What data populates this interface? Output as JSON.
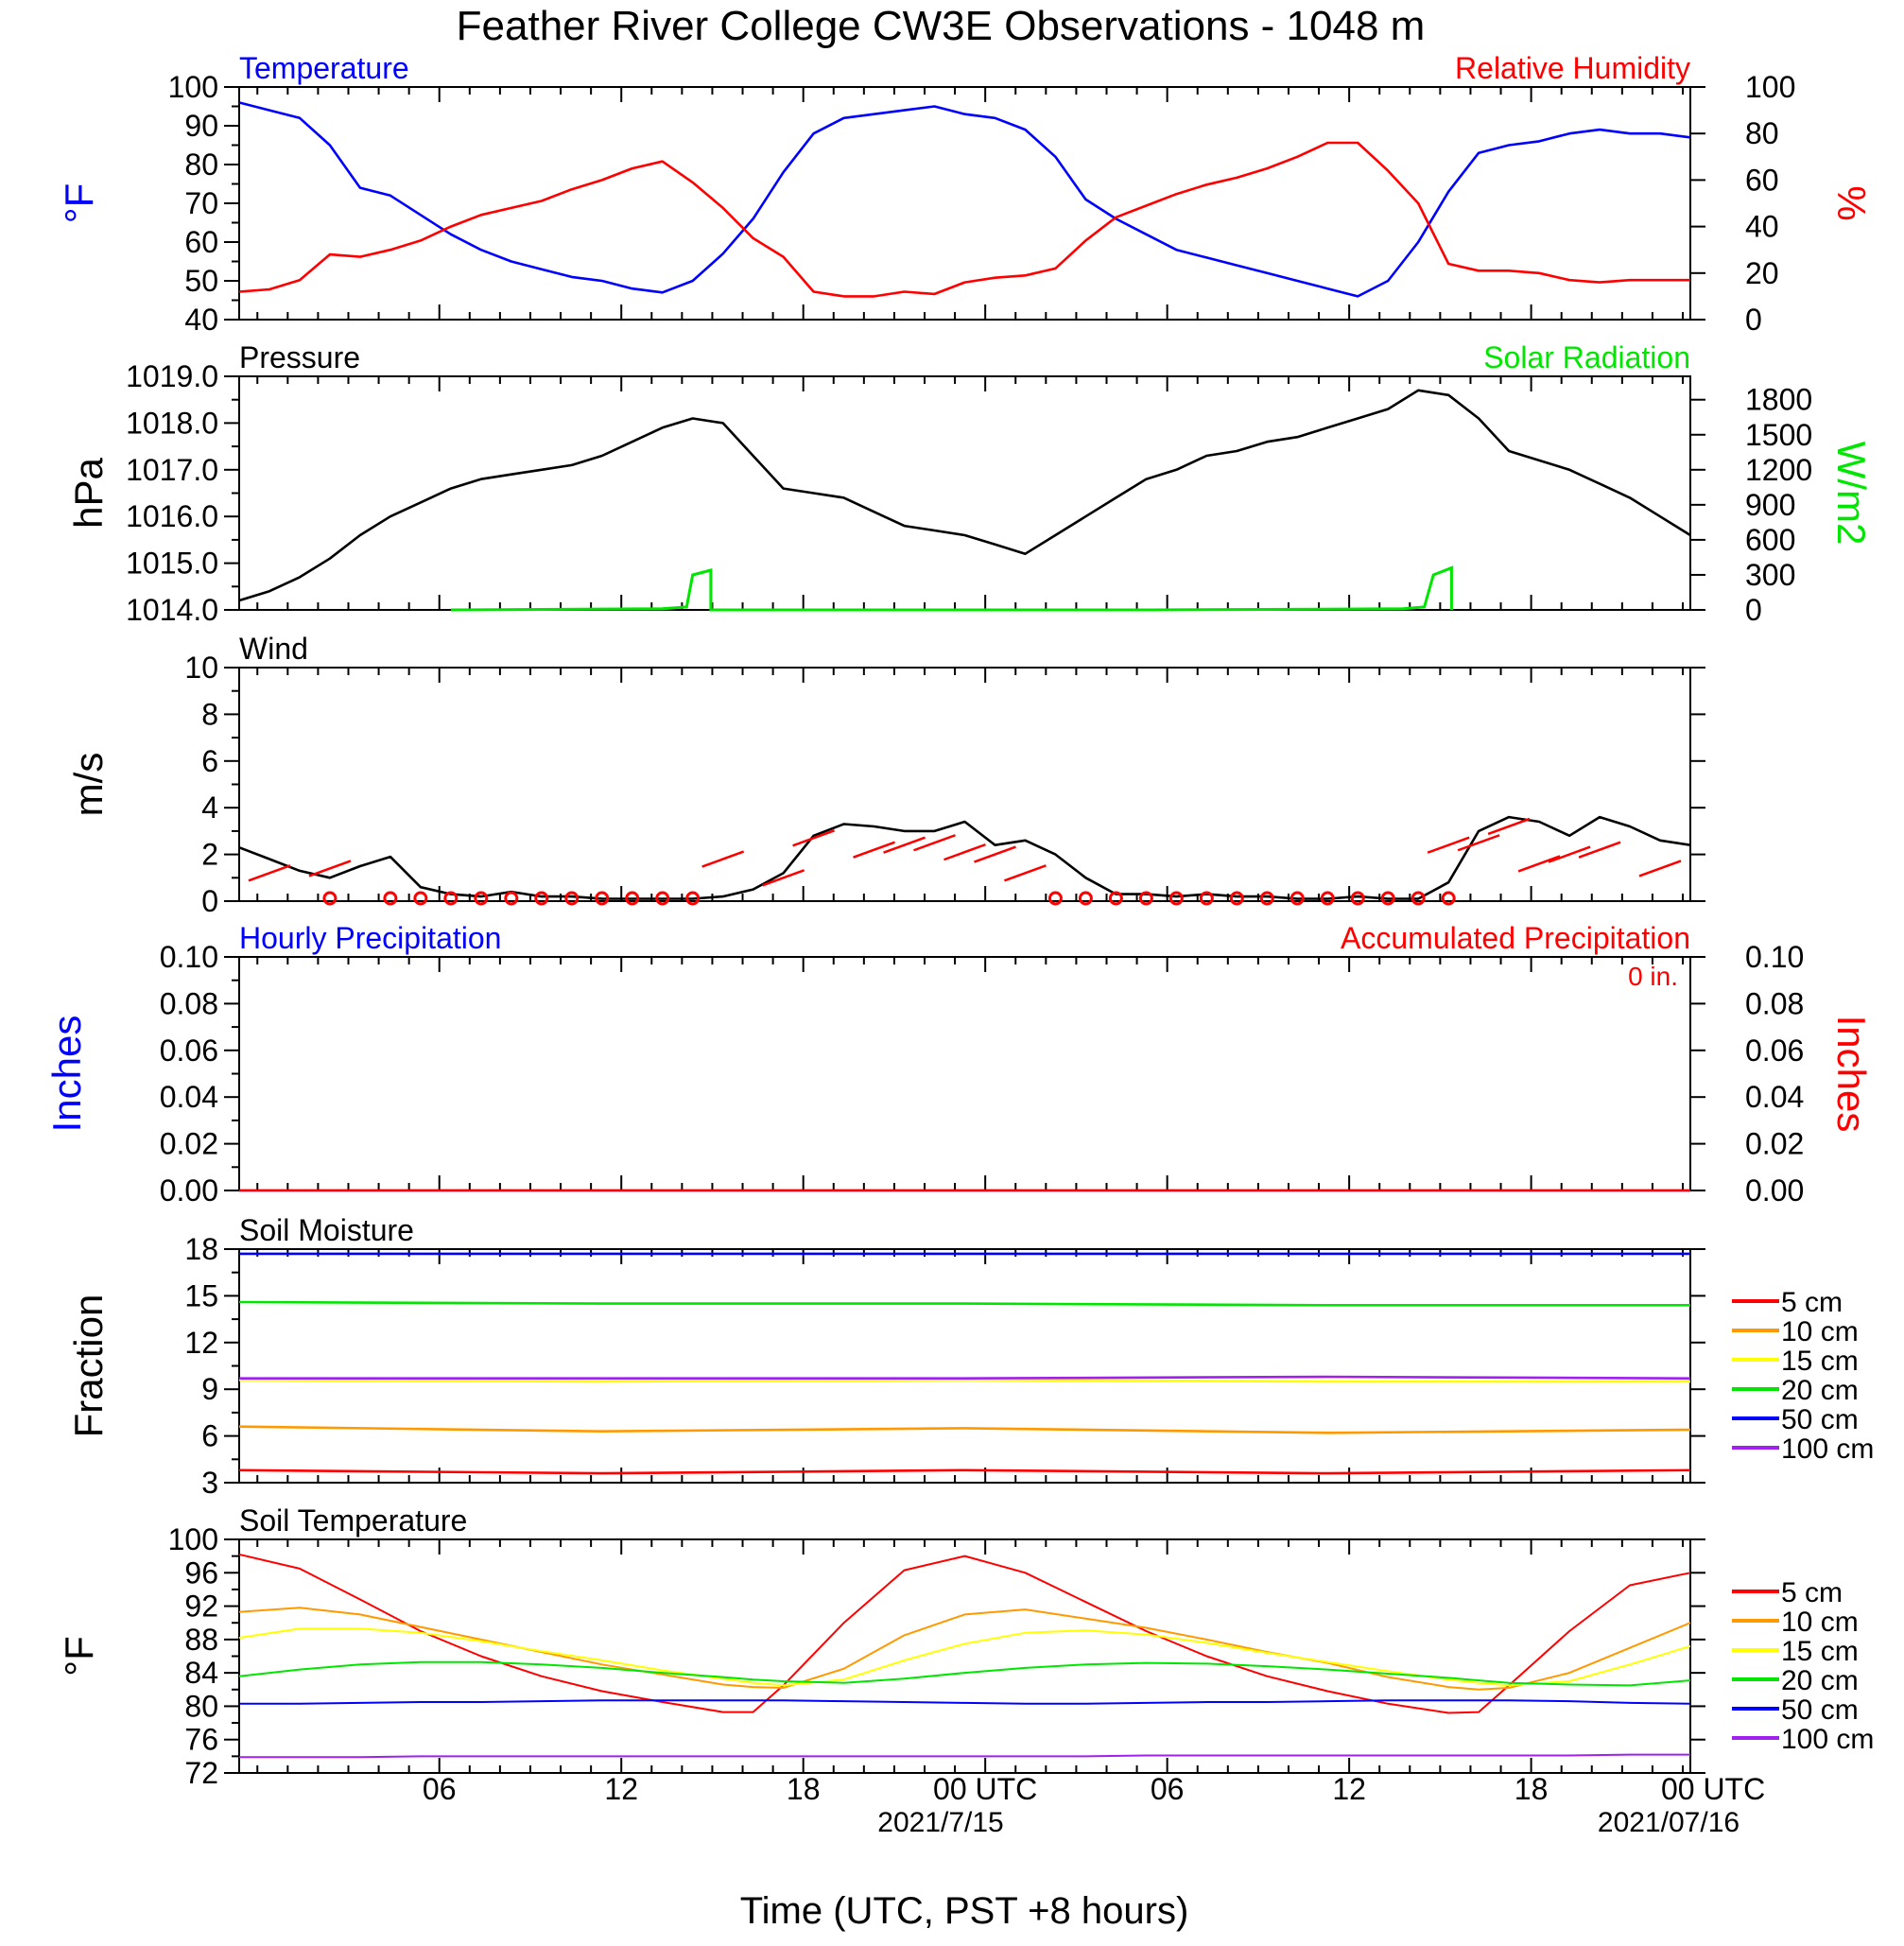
{
  "title": "Feather River College CW3E Observations - 1048 m",
  "colors": {
    "blue": "#0000ff",
    "red": "#ff0000",
    "green": "#00e600",
    "orange": "#ff9900",
    "yellow": "#ffff00",
    "purple": "#a020f0",
    "black": "#000000"
  },
  "x_axis": {
    "ticks": [
      "06",
      "12",
      "18",
      "00 UTC",
      "06",
      "12",
      "18",
      "00 UTC"
    ],
    "dates": [
      "2021/7/15",
      "2021/07/16"
    ],
    "label": "Time (UTC, PST +8 hours)"
  },
  "chart_data": [
    {
      "type": "line",
      "id": "temp_rh",
      "title_left": "Temperature",
      "title_right": "Relative Humidity",
      "ylabel_left": "°F",
      "ylabel_right": "%",
      "ylim_left": [
        40,
        100
      ],
      "ylim_right": [
        0,
        100
      ],
      "yticks_left": [
        "40",
        "50",
        "60",
        "70",
        "80",
        "90",
        "100"
      ],
      "yticks_right": [
        "0",
        "20",
        "40",
        "60",
        "80",
        "100"
      ],
      "x_hours": [
        0,
        1,
        2,
        3,
        4,
        5,
        6,
        7,
        8,
        9,
        10,
        11,
        12,
        13,
        14,
        15,
        16,
        17,
        18,
        19,
        20,
        21,
        22,
        23,
        24,
        25,
        26,
        27,
        28,
        29,
        30,
        31,
        32,
        33,
        34,
        35,
        36,
        37,
        38,
        39,
        40,
        41,
        42,
        43,
        44,
        45,
        46,
        47,
        48
      ],
      "series": [
        {
          "name": "Temperature",
          "axis": "left",
          "color": "#0000ff",
          "values": [
            96,
            94,
            92,
            85,
            74,
            72,
            67,
            62,
            58,
            55,
            53,
            51,
            50,
            48,
            47,
            50,
            57,
            66,
            78,
            88,
            92,
            93,
            94,
            95,
            93,
            92,
            89,
            82,
            71,
            66,
            62,
            58,
            56,
            54,
            52,
            50,
            48,
            46,
            50,
            60,
            73,
            83,
            85,
            86,
            88,
            89,
            88,
            88,
            87
          ]
        },
        {
          "name": "Relative Humidity",
          "axis": "right",
          "color": "#ff0000",
          "values": [
            12,
            13,
            17,
            28,
            27,
            30,
            34,
            40,
            45,
            48,
            51,
            56,
            60,
            65,
            68,
            59,
            48,
            35,
            27,
            12,
            10,
            10,
            12,
            11,
            16,
            18,
            19,
            22,
            34,
            44,
            49,
            54,
            58,
            61,
            65,
            70,
            76,
            76,
            64,
            50,
            24,
            21,
            21,
            20,
            17,
            16,
            17,
            17,
            17
          ]
        }
      ]
    },
    {
      "type": "line",
      "id": "pressure_solar",
      "title_left": "Pressure",
      "title_right": "Solar Radiation",
      "ylabel_left": "hPa",
      "ylabel_right": "W/m2",
      "ylim_left": [
        1014.0,
        1019.0
      ],
      "ylim_right": [
        0,
        2000
      ],
      "yticks_left": [
        "1014.0",
        "1015.0",
        "1016.0",
        "1017.0",
        "1018.0",
        "1019.0"
      ],
      "yticks_right": [
        "0",
        "300",
        "600",
        "900",
        "1200",
        "1500",
        "1800"
      ],
      "x_hours": [
        0,
        1,
        2,
        3,
        4,
        5,
        6,
        7,
        8,
        9,
        10,
        11,
        12,
        13,
        14,
        15,
        16,
        17,
        18,
        19,
        20,
        21,
        22,
        23,
        24,
        25,
        26,
        27,
        28,
        29,
        30,
        31,
        32,
        33,
        34,
        35,
        36,
        37,
        38,
        39,
        40,
        41,
        42,
        43,
        44,
        45,
        46,
        47,
        48
      ],
      "series": [
        {
          "name": "Pressure",
          "axis": "left",
          "color": "#000000",
          "values": [
            1014.2,
            1014.4,
            1014.7,
            1015.1,
            1015.6,
            1016.0,
            1016.3,
            1016.6,
            1016.8,
            1016.9,
            1017.0,
            1017.1,
            1017.3,
            1017.6,
            1017.9,
            1018.1,
            1018.0,
            1017.3,
            1016.6,
            1016.5,
            1016.4,
            1016.1,
            1015.8,
            1015.7,
            1015.6,
            1015.4,
            1015.2,
            1015.6,
            1016.0,
            1016.4,
            1016.8,
            1017.0,
            1017.3,
            1017.4,
            1017.6,
            1017.7,
            1017.9,
            1018.1,
            1018.3,
            1018.7,
            1018.6,
            1018.1,
            1017.4,
            1017.2,
            1017.0,
            1016.7,
            1016.4,
            1016.0,
            1015.6
          ]
        }
      ],
      "solar": {
        "name": "Solar Radiation",
        "color": "#00e600",
        "points": [
          [
            7,
            0
          ],
          [
            14,
            10
          ],
          [
            14.8,
            25
          ],
          [
            15,
            300
          ],
          [
            15.6,
            340
          ],
          [
            15.6,
            0
          ],
          [
            30.2,
            0
          ],
          [
            38.5,
            10
          ],
          [
            39.2,
            25
          ],
          [
            39.5,
            300
          ],
          [
            40.1,
            360
          ],
          [
            40.1,
            0
          ]
        ]
      }
    },
    {
      "type": "line",
      "id": "wind",
      "title_left": "Wind",
      "ylabel_left": "m/s",
      "ylim_left": [
        0,
        10
      ],
      "yticks_left": [
        "0",
        "2",
        "4",
        "6",
        "8",
        "10"
      ],
      "x_hours": [
        0,
        1,
        2,
        3,
        4,
        5,
        6,
        7,
        8,
        9,
        10,
        11,
        12,
        13,
        14,
        15,
        16,
        17,
        18,
        19,
        20,
        21,
        22,
        23,
        24,
        25,
        26,
        27,
        28,
        29,
        30,
        31,
        32,
        33,
        34,
        35,
        36,
        37,
        38,
        39,
        40,
        41,
        42,
        43,
        44,
        45,
        46,
        47,
        48
      ],
      "series": [
        {
          "name": "Wind speed",
          "axis": "left",
          "color": "#000000",
          "values": [
            2.3,
            1.8,
            1.3,
            1.0,
            1.5,
            1.9,
            0.6,
            0.3,
            0.2,
            0.4,
            0.2,
            0.2,
            0.1,
            0.1,
            0.1,
            0.1,
            0.2,
            0.5,
            1.2,
            2.8,
            3.3,
            3.2,
            3.0,
            3.0,
            3.4,
            2.4,
            2.6,
            2.0,
            1.0,
            0.3,
            0.3,
            0.2,
            0.3,
            0.2,
            0.2,
            0.1,
            0.1,
            0.2,
            0.1,
            0.1,
            0.8,
            3.0,
            3.6,
            3.4,
            2.8,
            3.6,
            3.2,
            2.6,
            2.4
          ]
        }
      ],
      "calm_markers_hours": [
        3,
        5,
        6,
        7,
        8,
        9,
        10,
        11,
        12,
        13,
        14,
        15,
        27,
        28,
        29,
        30,
        31,
        32,
        33,
        34,
        35,
        36,
        37,
        38,
        39,
        40
      ],
      "barbs": [
        [
          1,
          1.2
        ],
        [
          3,
          1.4
        ],
        [
          16,
          1.8
        ],
        [
          18,
          1.0
        ],
        [
          19,
          2.7
        ],
        [
          21,
          2.2
        ],
        [
          22,
          2.4
        ],
        [
          23,
          2.5
        ],
        [
          24,
          2.1
        ],
        [
          25,
          2.0
        ],
        [
          26,
          1.2
        ],
        [
          40,
          2.4
        ],
        [
          41,
          2.5
        ],
        [
          42,
          3.2
        ],
        [
          43,
          1.6
        ],
        [
          44,
          2.0
        ],
        [
          45,
          2.2
        ],
        [
          47,
          1.4
        ]
      ]
    },
    {
      "type": "line",
      "id": "precip",
      "title_left": "Hourly Precipitation",
      "title_right": "Accumulated Precipitation",
      "annotation": "0 in.",
      "ylabel_left": "Inches",
      "ylabel_right": "Inches",
      "ylim_left": [
        0,
        0.1
      ],
      "ylim_right": [
        0,
        0.1
      ],
      "yticks_left": [
        "0.00",
        "0.02",
        "0.04",
        "0.06",
        "0.08",
        "0.10"
      ],
      "yticks_right": [
        "0.00",
        "0.02",
        "0.04",
        "0.06",
        "0.08",
        "0.10"
      ],
      "series": [
        {
          "name": "Hourly Precipitation",
          "color": "#0000ff",
          "values": [
            0,
            0
          ]
        },
        {
          "name": "Accumulated Precipitation",
          "color": "#ff0000",
          "values": [
            0,
            0
          ]
        }
      ]
    },
    {
      "type": "line",
      "id": "soil_moisture",
      "title_left": "Soil Moisture",
      "ylabel_left": "Fraction",
      "ylim_left": [
        3,
        18
      ],
      "yticks_left": [
        "3",
        "6",
        "9",
        "12",
        "15",
        "18"
      ],
      "x_hours": [
        0,
        12,
        24,
        36,
        48
      ],
      "series": [
        {
          "name": "5 cm",
          "color": "#ff0000",
          "values": [
            3.8,
            3.6,
            3.8,
            3.6,
            3.8
          ]
        },
        {
          "name": "10 cm",
          "color": "#ff9900",
          "values": [
            6.6,
            6.3,
            6.5,
            6.2,
            6.4
          ]
        },
        {
          "name": "15 cm",
          "color": "#ffff00",
          "values": [
            9.6,
            9.5,
            9.6,
            9.5,
            9.5
          ]
        },
        {
          "name": "20 cm",
          "color": "#00e600",
          "values": [
            14.6,
            14.5,
            14.5,
            14.4,
            14.4
          ]
        },
        {
          "name": "50 cm",
          "color": "#0000ff",
          "values": [
            17.7,
            17.7,
            17.7,
            17.7,
            17.7
          ]
        },
        {
          "name": "100 cm",
          "color": "#a020f0",
          "values": [
            9.7,
            9.7,
            9.7,
            9.8,
            9.7
          ]
        }
      ],
      "legend": [
        "5 cm",
        "10 cm",
        "15 cm",
        "20 cm",
        "50 cm",
        "100 cm"
      ]
    },
    {
      "type": "line",
      "id": "soil_temp",
      "title_left": "Soil Temperature",
      "ylabel_left": "°F",
      "ylim_left": [
        72,
        100
      ],
      "yticks_left": [
        "72",
        "76",
        "80",
        "84",
        "88",
        "92",
        "96",
        "100"
      ],
      "x_hours": [
        0,
        2,
        4,
        6,
        8,
        10,
        12,
        14,
        16,
        17,
        18,
        20,
        22,
        24,
        26,
        28,
        30,
        32,
        34,
        36,
        38,
        40,
        41,
        42,
        44,
        46,
        48
      ],
      "series": [
        {
          "name": "5 cm",
          "color": "#ff0000",
          "values": [
            98.2,
            96.5,
            92.8,
            89.0,
            86.0,
            83.6,
            81.8,
            80.5,
            79.3,
            79.3,
            82.5,
            90.0,
            96.3,
            98.0,
            96.0,
            92.5,
            89.0,
            86.0,
            83.6,
            81.8,
            80.3,
            79.2,
            79.3,
            82.5,
            89.0,
            94.5,
            96.0
          ]
        },
        {
          "name": "10 cm",
          "color": "#ff9900",
          "values": [
            91.3,
            91.8,
            91.0,
            89.5,
            88.0,
            86.5,
            85.0,
            83.8,
            82.6,
            82.3,
            82.2,
            84.5,
            88.5,
            91.0,
            91.6,
            90.5,
            89.4,
            88.0,
            86.5,
            85.2,
            83.5,
            82.3,
            82.0,
            82.2,
            84.0,
            87.0,
            90.0
          ]
        },
        {
          "name": "15 cm",
          "color": "#ffff00",
          "values": [
            88.2,
            89.3,
            89.3,
            88.8,
            87.8,
            86.6,
            85.5,
            84.3,
            83.3,
            82.8,
            82.5,
            83.2,
            85.5,
            87.5,
            88.8,
            89.1,
            88.6,
            87.6,
            86.4,
            85.3,
            84.2,
            83.2,
            82.8,
            82.5,
            83.0,
            85.0,
            87.2
          ]
        },
        {
          "name": "20 cm",
          "color": "#00e600",
          "values": [
            83.6,
            84.4,
            85.0,
            85.3,
            85.3,
            85.0,
            84.6,
            84.0,
            83.5,
            83.2,
            83.0,
            82.8,
            83.3,
            84.0,
            84.6,
            85.0,
            85.2,
            85.1,
            84.8,
            84.4,
            83.9,
            83.4,
            83.1,
            82.8,
            82.6,
            82.5,
            83.1
          ]
        },
        {
          "name": "50 cm",
          "color": "#0000ff",
          "values": [
            80.3,
            80.3,
            80.4,
            80.5,
            80.5,
            80.6,
            80.7,
            80.7,
            80.7,
            80.7,
            80.7,
            80.6,
            80.5,
            80.4,
            80.3,
            80.3,
            80.4,
            80.5,
            80.5,
            80.6,
            80.7,
            80.7,
            80.7,
            80.7,
            80.6,
            80.4,
            80.3
          ]
        },
        {
          "name": "100 cm",
          "color": "#a020f0",
          "values": [
            73.9,
            73.9,
            73.9,
            74.0,
            74.0,
            74.0,
            74.0,
            74.0,
            74.0,
            74.0,
            74.0,
            74.0,
            74.0,
            74.0,
            74.0,
            74.0,
            74.1,
            74.1,
            74.1,
            74.1,
            74.1,
            74.1,
            74.1,
            74.1,
            74.1,
            74.2,
            74.2
          ]
        }
      ],
      "legend": [
        "5 cm",
        "10 cm",
        "15 cm",
        "20 cm",
        "50 cm",
        "100 cm"
      ]
    }
  ]
}
